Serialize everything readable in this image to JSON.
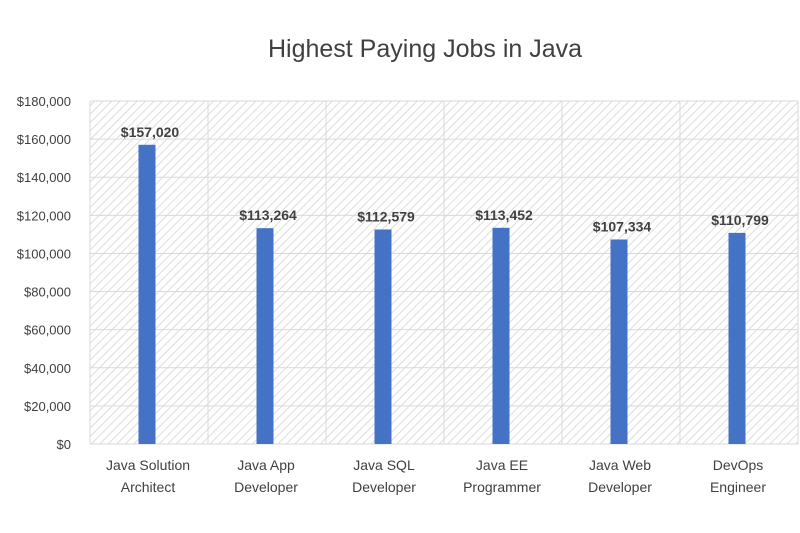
{
  "chart_data": {
    "type": "bar",
    "title": "Highest Paying Jobs in Java",
    "categories": [
      [
        "Java Solution",
        "Architect"
      ],
      [
        "Java App",
        "Developer"
      ],
      [
        "Java SQL",
        "Developer"
      ],
      [
        "Java EE",
        "Programmer"
      ],
      [
        "Java Web",
        "Developer"
      ],
      [
        "DevOps",
        "Engineer"
      ]
    ],
    "values": [
      157020,
      113264,
      112579,
      113452,
      107334,
      110799
    ],
    "data_labels": [
      "$157,020",
      "$113,264",
      "$112,579",
      "$113,452",
      "$107,334",
      "$110,799"
    ],
    "yticks": [
      "$0",
      "$20,000",
      "$40,000",
      "$60,000",
      "$80,000",
      "$100,000",
      "$120,000",
      "$140,000",
      "$160,000",
      "$180,000"
    ],
    "ylim": [
      0,
      180000
    ],
    "xlabel": "",
    "ylabel": "",
    "grid": true,
    "bar_color": "#4472C4",
    "grid_color": "#D9D9D9"
  }
}
